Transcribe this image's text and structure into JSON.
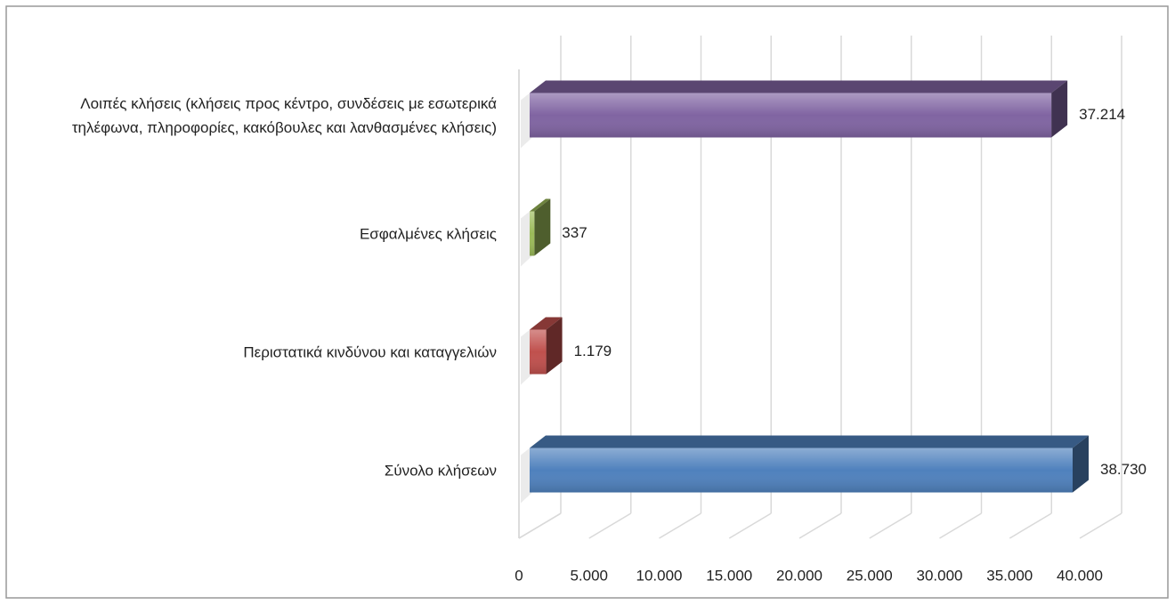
{
  "chart_data": {
    "type": "bar3d_horizontal",
    "categories": [
      "Σύνολο κλήσεων",
      "Περιστατικά κινδύνου και καταγγελιών",
      "Εσφαλμένες κλήσεις",
      "Λοιπές κλήσεις (κλήσεις προς κέντρο, συνδέσεις με εσωτερικά τηλέφωνα, πληροφορίες, κακόβουλες και λανθασμένες κλήσεις)"
    ],
    "values": [
      38730,
      1179,
      337,
      37214
    ],
    "value_labels": [
      "38.730",
      "1.179",
      "337",
      "37.214"
    ],
    "colors": [
      "#4f81bd",
      "#c0504d",
      "#9bbb59",
      "#8064a2"
    ],
    "xlim": [
      0,
      40000
    ],
    "xticks": [
      0,
      {
        "value": 5000,
        "label": "5.000"
      },
      {
        "value": 10000,
        "label": "10.000"
      },
      {
        "value": 15000,
        "label": "15.000"
      },
      {
        "value": 20000,
        "label": "20.000"
      },
      {
        "value": 25000,
        "label": "25.000"
      },
      {
        "value": 30000,
        "label": "30.000"
      },
      {
        "value": 35000,
        "label": "35.000"
      },
      {
        "value": 40000,
        "label": "40.000"
      }
    ],
    "grid": true
  }
}
